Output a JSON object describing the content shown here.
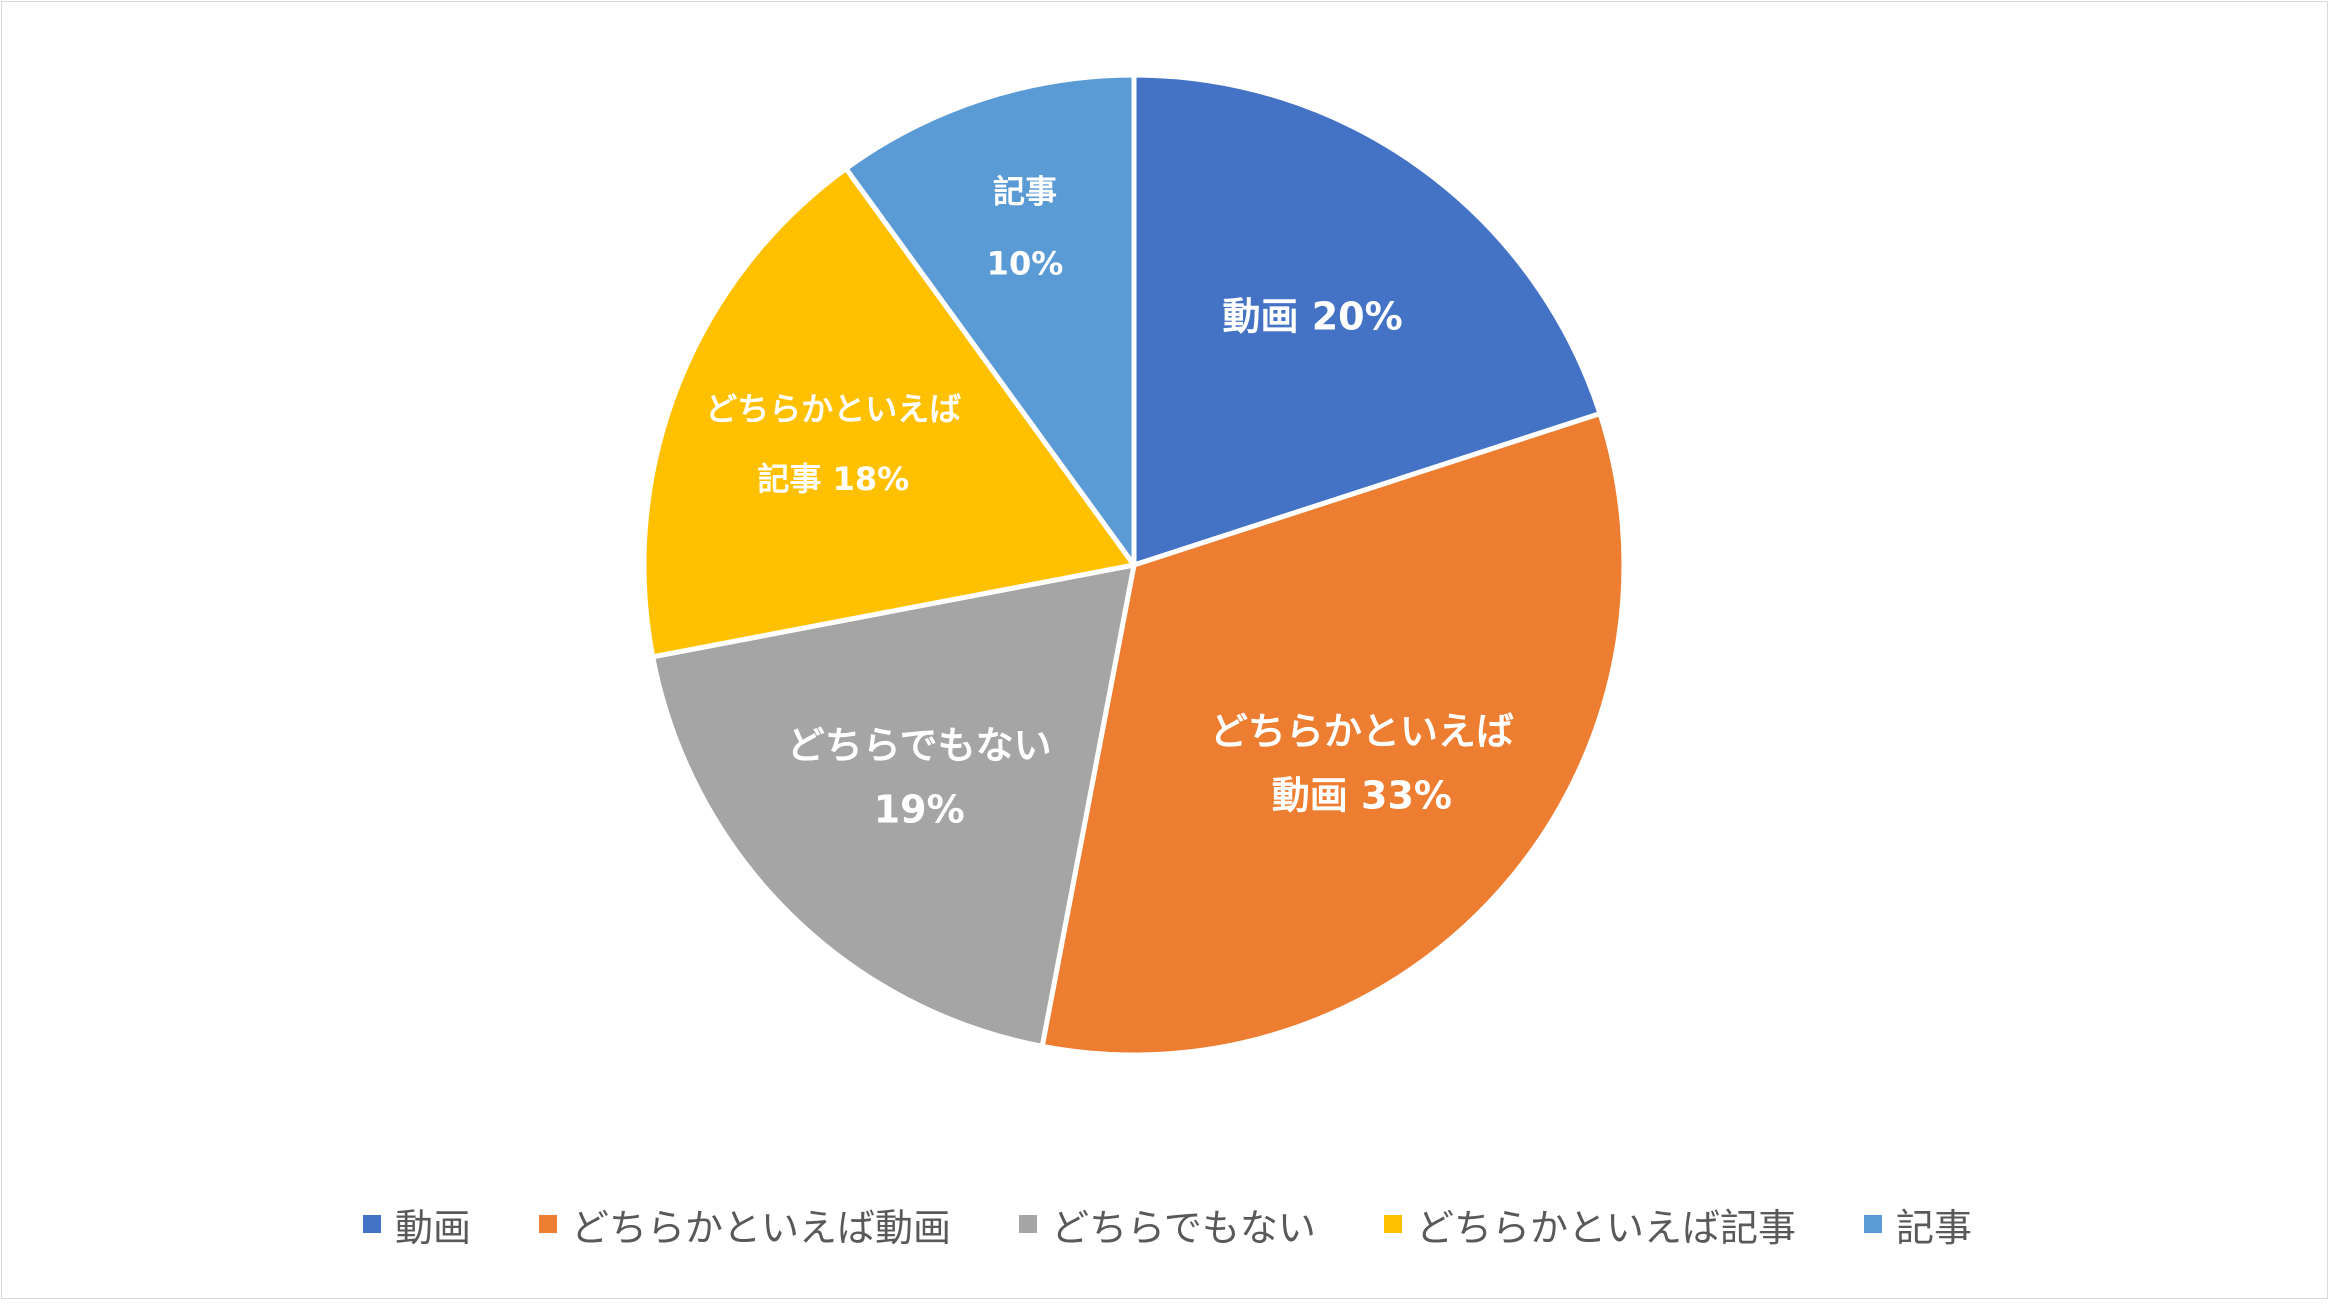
{
  "chart_data": {
    "type": "pie",
    "title": "",
    "legend_position": "bottom",
    "slices": [
      {
        "name": "動画",
        "value": 20,
        "color": "#4472C4",
        "label_lines": [
          "動画 20%"
        ]
      },
      {
        "name": "どちらかといえば動画",
        "value": 33,
        "color": "#ED7D31",
        "label_lines": [
          "どちらかといえば",
          "動画 33%"
        ]
      },
      {
        "name": "どちらでもない",
        "value": 19,
        "color": "#A5A5A5",
        "label_lines": [
          "どちらでもない",
          "19%"
        ]
      },
      {
        "name": "どちらかといえば記事",
        "value": 18,
        "color": "#FFC000",
        "label_lines": [
          "どちらかといえば",
          "記事 18%"
        ]
      },
      {
        "name": "記事",
        "value": 10,
        "color": "#5B9BD5",
        "label_lines": [
          "記事",
          "10%"
        ]
      }
    ]
  }
}
